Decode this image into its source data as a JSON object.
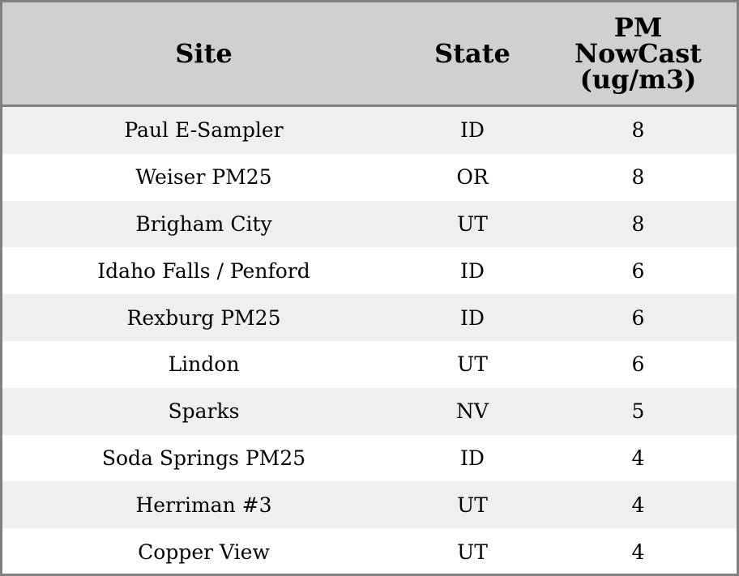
{
  "chart_data": {
    "type": "table",
    "columns": [
      "Site",
      "State",
      "PM NowCast (ug/m3)"
    ],
    "header_lines": [
      [
        "Site"
      ],
      [
        "State"
      ],
      [
        "PM",
        "NowCast",
        "(ug/m3)"
      ]
    ],
    "rows": [
      [
        "Paul E-Sampler",
        "ID",
        "8"
      ],
      [
        "Weiser PM25",
        "OR",
        "8"
      ],
      [
        "Brigham City",
        "UT",
        "8"
      ],
      [
        "Idaho Falls / Penford",
        "ID",
        "6"
      ],
      [
        "Rexburg PM25",
        "ID",
        "6"
      ],
      [
        "Lindon",
        "UT",
        "6"
      ],
      [
        "Sparks",
        "NV",
        "5"
      ],
      [
        "Soda Springs PM25",
        "ID",
        "4"
      ],
      [
        "Herriman #3",
        "UT",
        "4"
      ],
      [
        "Copper View",
        "UT",
        "4"
      ]
    ],
    "colors": {
      "header_bg": "#d0d0d0",
      "stripe_bg": "#efefef",
      "border": "#808080"
    }
  }
}
